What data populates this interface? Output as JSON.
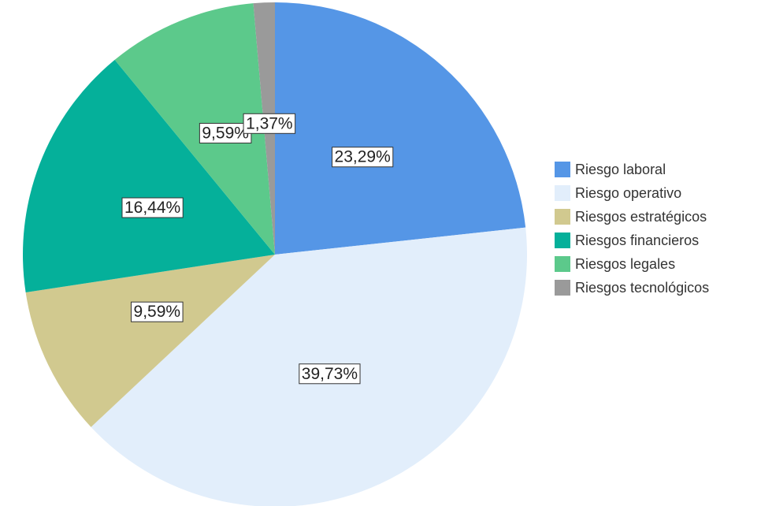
{
  "chart_data": {
    "type": "pie",
    "categories": [
      "Riesgo laboral",
      "Riesgo operativo",
      "Riesgos estratégicos",
      "Riesgos financieros",
      "Riesgos legales",
      "Riesgos tecnológicos"
    ],
    "values": [
      23.29,
      39.73,
      9.59,
      16.44,
      9.59,
      1.37
    ],
    "value_labels": [
      "23,29%",
      "39,73%",
      "9,59%",
      "16,44%",
      "9,59%",
      "1,37%"
    ],
    "colors": [
      "#5596e6",
      "#e2eefb",
      "#d1c98f",
      "#05b09a",
      "#5cc98b",
      "#9a9a9a"
    ],
    "legend": "right"
  }
}
